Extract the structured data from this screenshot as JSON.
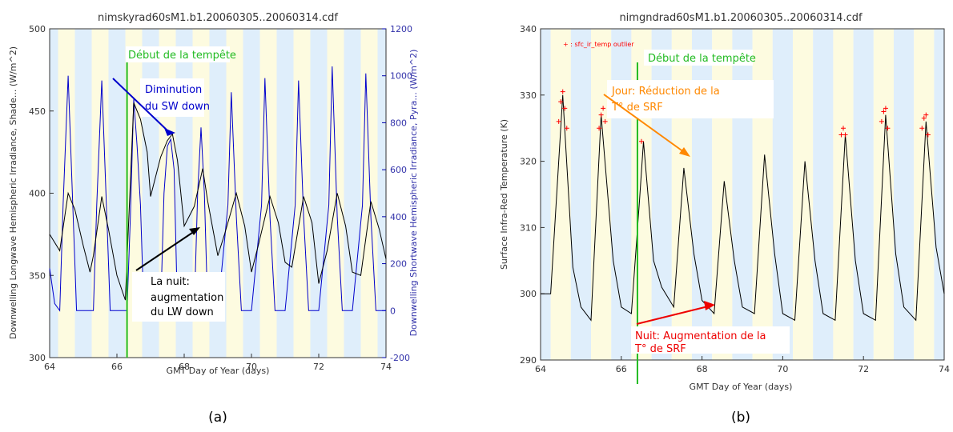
{
  "chart_data": [
    {
      "type": "line",
      "panel_label": "(a)",
      "title": "nimskyrad60sM1.b1.20060305..20060314.cdf",
      "xlabel": "GMT Day of Year (days)",
      "ylabel": "Downwelling Longwave Hemispheric Irradiance, Shade... (W/m^2)",
      "ylabel_right": "Downwelling Shortwave Hemispheric Irradiance, Pyra... (W/m^2)",
      "xlim": [
        64,
        74
      ],
      "ylim": [
        300,
        500
      ],
      "ylim_right": [
        -200,
        1200
      ],
      "xticks": [
        "64",
        "66",
        "68",
        "70",
        "72",
        "74"
      ],
      "yticks": [
        "300",
        "350",
        "400",
        "450",
        "500"
      ],
      "yticks_right": [
        "-200",
        "0",
        "200",
        "400",
        "600",
        "800",
        "1000",
        "1200"
      ],
      "background": "alternating day/night shading (yellow = day, blue = night)",
      "storm_start_day": 66.3,
      "series": [
        {
          "axis": "left",
          "color": "#000000",
          "x": [
            64.0,
            64.3,
            64.55,
            64.75,
            65.0,
            65.2,
            65.3,
            65.55,
            65.75,
            66.0,
            66.25,
            66.5,
            66.7,
            66.9,
            67.0,
            67.3,
            67.5,
            67.65,
            67.8,
            68.0,
            68.3,
            68.55,
            68.7,
            69.0,
            69.2,
            69.55,
            69.8,
            70.0,
            70.2,
            70.55,
            70.8,
            71.0,
            71.2,
            71.55,
            71.8,
            72.0,
            72.25,
            72.55,
            72.8,
            73.0,
            73.25,
            73.55,
            73.8,
            74.0
          ],
          "values": [
            375,
            365,
            400,
            390,
            368,
            352,
            362,
            398,
            378,
            350,
            335,
            455,
            445,
            425,
            398,
            422,
            432,
            436,
            420,
            380,
            392,
            415,
            395,
            362,
            375,
            400,
            380,
            352,
            368,
            398,
            382,
            358,
            355,
            398,
            382,
            345,
            365,
            400,
            380,
            352,
            350,
            395,
            378,
            360
          ]
        },
        {
          "axis": "right",
          "color": "#0000cc",
          "x": [
            64.0,
            64.15,
            64.3,
            64.4,
            64.55,
            64.7,
            64.8,
            65.0,
            65.3,
            65.4,
            65.55,
            65.7,
            65.8,
            66.0,
            66.3,
            66.4,
            66.5,
            66.6,
            66.7,
            66.8,
            67.0,
            67.3,
            67.4,
            67.5,
            67.6,
            67.7,
            67.8,
            68.0,
            68.3,
            68.4,
            68.5,
            68.6,
            68.7,
            68.8,
            69.0,
            69.3,
            69.4,
            69.55,
            69.7,
            69.8,
            70.0,
            70.3,
            70.4,
            70.55,
            70.7,
            70.8,
            71.0,
            71.3,
            71.4,
            71.55,
            71.7,
            71.8,
            72.0,
            72.3,
            72.4,
            72.55,
            72.7,
            72.8,
            73.0,
            73.3,
            73.4,
            73.55,
            73.7,
            73.8,
            74.0
          ],
          "values": [
            180,
            30,
            0,
            450,
            1000,
            400,
            0,
            0,
            0,
            450,
            980,
            400,
            0,
            0,
            0,
            400,
            900,
            700,
            450,
            0,
            0,
            0,
            500,
            700,
            730,
            600,
            0,
            0,
            0,
            500,
            780,
            500,
            0,
            0,
            0,
            450,
            930,
            400,
            0,
            0,
            0,
            450,
            990,
            400,
            0,
            0,
            0,
            450,
            980,
            400,
            0,
            0,
            0,
            450,
            1040,
            400,
            0,
            0,
            0,
            450,
            1010,
            400,
            0,
            0,
            0
          ]
        }
      ],
      "annotations": [
        {
          "text": "Début de la tempête",
          "color": "#22bb22"
        },
        {
          "text_lines": [
            "Diminution",
            "du SW down"
          ],
          "color": "#0000cc"
        },
        {
          "text_lines": [
            "La nuit:",
            "augmentation",
            "du LW down"
          ],
          "color": "#000000"
        }
      ]
    },
    {
      "type": "line",
      "panel_label": "(b)",
      "title": "nimgndrad60sM1.b1.20060305..20060314.cdf",
      "xlabel": "GMT Day of Year (days)",
      "ylabel": "Surface Infra-Red Temperature (K)",
      "xlim": [
        64,
        74
      ],
      "ylim": [
        290,
        340
      ],
      "xticks": [
        "64",
        "66",
        "68",
        "70",
        "72",
        "74"
      ],
      "yticks": [
        "290",
        "300",
        "310",
        "320",
        "330",
        "340"
      ],
      "background": "alternating day/night shading (yellow = day, blue = night)",
      "storm_start_day": 66.4,
      "legend": "+ : sfc_ir_temp outlier",
      "series": [
        {
          "color": "#000000",
          "x": [
            64.0,
            64.25,
            64.55,
            64.8,
            65.0,
            65.25,
            65.5,
            65.8,
            66.0,
            66.25,
            66.45,
            66.55,
            66.8,
            67.0,
            67.3,
            67.55,
            67.8,
            68.0,
            68.3,
            68.55,
            68.8,
            69.0,
            69.3,
            69.55,
            69.8,
            70.0,
            70.3,
            70.55,
            70.8,
            71.0,
            71.3,
            71.55,
            71.8,
            72.0,
            72.3,
            72.55,
            72.8,
            73.0,
            73.3,
            73.55,
            73.8,
            74.0
          ],
          "values": [
            300,
            300,
            330,
            304,
            298,
            296,
            327,
            305,
            298,
            297,
            314,
            323,
            305,
            301,
            298,
            319,
            306,
            299,
            297,
            317,
            305,
            298,
            297,
            321,
            306,
            297,
            296,
            320,
            305,
            297,
            296,
            324,
            305,
            297,
            296,
            327,
            306,
            298,
            296,
            326,
            307,
            300
          ]
        },
        {
          "name": "sfc_ir_temp outlier",
          "color": "#ff0000",
          "marker": "+",
          "points": [
            [
              64.45,
              326
            ],
            [
              64.5,
              329
            ],
            [
              64.55,
              330.5
            ],
            [
              64.6,
              328
            ],
            [
              64.65,
              325
            ],
            [
              65.45,
              325
            ],
            [
              65.5,
              327
            ],
            [
              65.55,
              328
            ],
            [
              65.6,
              326
            ],
            [
              66.5,
              323
            ],
            [
              71.45,
              324
            ],
            [
              71.5,
              325
            ],
            [
              71.55,
              324
            ],
            [
              72.45,
              326
            ],
            [
              72.5,
              327.5
            ],
            [
              72.55,
              328
            ],
            [
              72.6,
              325
            ],
            [
              73.45,
              325
            ],
            [
              73.5,
              326.5
            ],
            [
              73.55,
              327
            ],
            [
              73.6,
              324
            ]
          ]
        }
      ],
      "annotations": [
        {
          "text": "Début de la tempête",
          "color": "#22bb22"
        },
        {
          "text_lines": [
            "Jour: Réduction de la",
            "T° de SRF"
          ],
          "color": "#ff8800"
        },
        {
          "text_lines": [
            "Nuit: Augmentation de la",
            "T° de SRF"
          ],
          "color": "#ee0000"
        }
      ]
    }
  ]
}
